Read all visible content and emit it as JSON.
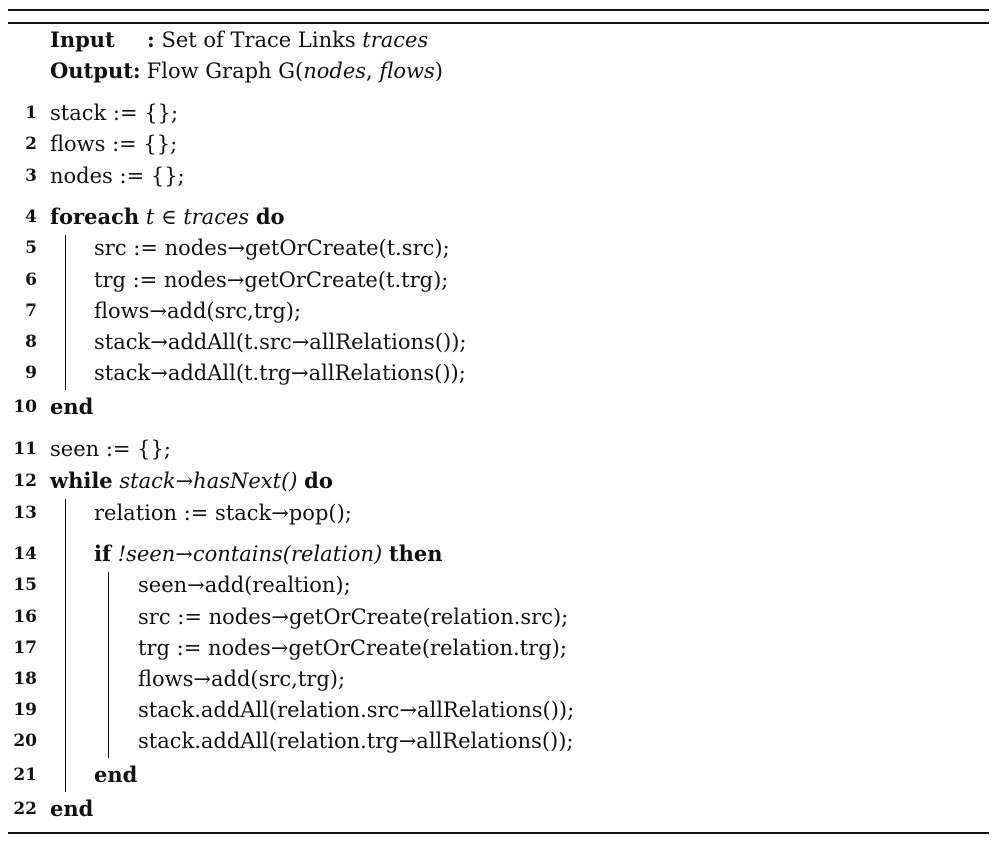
{
  "header": {
    "input_label": "Input",
    "input_sep": ":",
    "input_text": "Set of Trace Links",
    "input_var": "traces",
    "output_label": "Output:",
    "output_text": "Flow Graph G(",
    "output_var1": "nodes",
    "output_comma": ", ",
    "output_var2": "flows",
    "output_close": ")"
  },
  "lines": [
    {
      "no": "1",
      "text": "stack := {};"
    },
    {
      "no": "2",
      "text": "flows := {};"
    },
    {
      "no": "3",
      "text": "nodes := {};"
    },
    {
      "no": "4",
      "kw1": "foreach",
      "var": "t",
      "op": "∈",
      "var2": "traces",
      "kw2": "do"
    },
    {
      "no": "5",
      "text": "src := nodes→getOrCreate(t.src);"
    },
    {
      "no": "6",
      "text": "trg := nodes→getOrCreate(t.trg);"
    },
    {
      "no": "7",
      "text": "flows→add(src,trg);"
    },
    {
      "no": "8",
      "text": "stack→addAll(t.src→allRelations());"
    },
    {
      "no": "9",
      "text": "stack→addAll(t.trg→allRelations());"
    },
    {
      "no": "10",
      "kw": "end"
    },
    {
      "no": "11",
      "text": "seen := {};"
    },
    {
      "no": "12",
      "kw1": "while",
      "cond": "stack→hasNext()",
      "kw2": "do"
    },
    {
      "no": "13",
      "text": "relation := stack→pop();"
    },
    {
      "no": "14",
      "kw1": "if",
      "cond": "!seen→contains(relation)",
      "kw2": "then"
    },
    {
      "no": "15",
      "text": "seen→add(realtion);"
    },
    {
      "no": "16",
      "text": "src := nodes→getOrCreate(relation.src);"
    },
    {
      "no": "17",
      "text": "trg := nodes→getOrCreate(relation.trg);"
    },
    {
      "no": "18",
      "text": "flows→add(src,trg);"
    },
    {
      "no": "19",
      "text": "stack.addAll(relation.src→allRelations());"
    },
    {
      "no": "20",
      "text": "stack.addAll(relation.trg→allRelations());"
    },
    {
      "no": "21",
      "kw": "end"
    },
    {
      "no": "22",
      "kw": "end"
    }
  ]
}
